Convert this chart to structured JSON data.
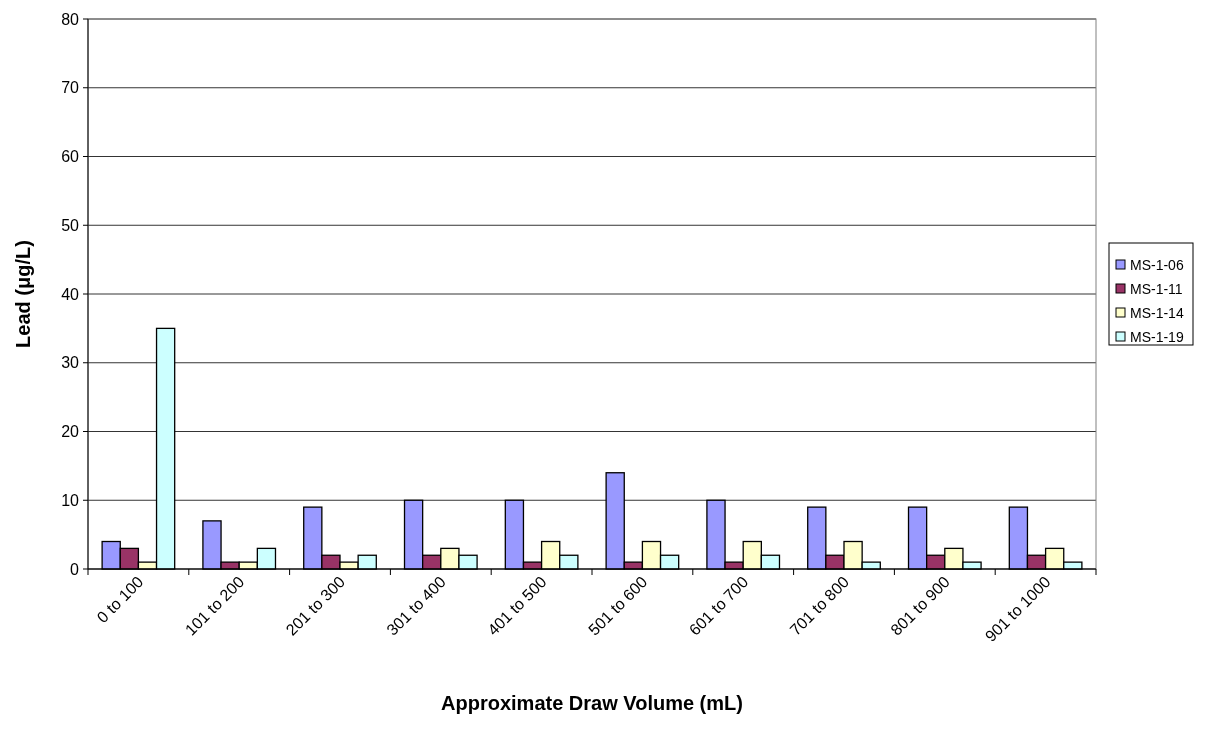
{
  "chart_data": {
    "type": "bar",
    "xlabel": "Approximate Draw Volume (mL)",
    "ylabel": "Lead (μg/L)",
    "categories": [
      "0 to 100",
      "101 to 200",
      "201 to 300",
      "301 to 400",
      "401 to 500",
      "501 to 600",
      "601 to 700",
      "701 to 800",
      "801 to 900",
      "901 to 1000"
    ],
    "series": [
      {
        "name": "MS-1-06",
        "color": "#9999ff",
        "values": [
          4,
          7,
          9,
          10,
          10,
          14,
          10,
          9,
          9,
          9
        ]
      },
      {
        "name": "MS-1-11",
        "color": "#993366",
        "values": [
          3,
          1,
          2,
          2,
          1,
          1,
          1,
          2,
          2,
          2
        ]
      },
      {
        "name": "MS-1-14",
        "color": "#ffffcc",
        "values": [
          1,
          1,
          1,
          3,
          4,
          4,
          4,
          4,
          3,
          3
        ]
      },
      {
        "name": "MS-1-19",
        "color": "#ccffff",
        "values": [
          35,
          3,
          2,
          2,
          2,
          2,
          2,
          1,
          1,
          1
        ]
      }
    ],
    "ylim": [
      0,
      80
    ],
    "yticks": [
      0,
      10,
      20,
      30,
      40,
      50,
      60,
      70,
      80
    ],
    "grid": "y",
    "legend": "right"
  }
}
